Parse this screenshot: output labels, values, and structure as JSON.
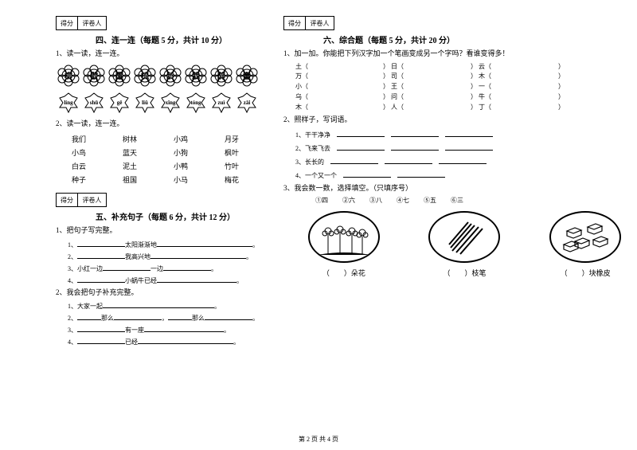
{
  "left": {
    "scoreLabels": [
      "得分",
      "评卷人"
    ],
    "section4": {
      "title": "四、连一连（每题 5 分，共计 10 分）",
      "q1": "1、读一读，连一连。",
      "flowers": [
        "柳",
        "歇",
        "醒",
        "梳",
        "龄",
        "栽",
        "醉",
        "童"
      ],
      "leaves": [
        "líng",
        "shū",
        "gē",
        "liǔ",
        "xǐng",
        "tóng",
        "zuì",
        "zāi"
      ],
      "q2": "2、读一读，连一连。",
      "match": [
        [
          "我们",
          "树林",
          "小鸡",
          "月牙"
        ],
        [
          "小鸟",
          "蓝天",
          "小狗",
          "枫叶"
        ],
        [
          "白云",
          "泥土",
          "小鸭",
          "竹叶"
        ],
        [
          "种子",
          "祖国",
          "小马",
          "梅花"
        ]
      ]
    },
    "section5": {
      "title": "五、补充句子（每题 6 分，共计 12 分）",
      "q1": "1、把句子写完整。",
      "s1": [
        "1、",
        "太阳渐渐地",
        "。"
      ],
      "s2": [
        "2、",
        "我高兴地",
        "。"
      ],
      "s3": [
        "3、小红一边",
        "一边",
        "。"
      ],
      "s4": [
        "4、",
        "小蜗牛已经",
        "。"
      ],
      "q2": "2、我会把句子补充完整。",
      "t1": [
        "1、大家一起",
        "。"
      ],
      "t2": [
        "2、",
        "那么",
        "，",
        "那么",
        "。"
      ],
      "t3": [
        "3、",
        "有一座",
        "。"
      ],
      "t4": [
        "4、",
        "已经",
        "。"
      ]
    }
  },
  "right": {
    "scoreLabels": [
      "得分",
      "评卷人"
    ],
    "section6": {
      "title": "六、综合题（每题 5 分，共计 20 分）",
      "q1": "1、加一加。你能把下列汉字加一个笔画变成另一个字吗？看谁变得多！",
      "hanzi": [
        [
          "土（",
          "）  日（",
          "）  云（",
          "）"
        ],
        [
          "万（",
          "）  司（",
          "）  木（",
          "）"
        ],
        [
          "小（",
          "）  王（",
          "）  一（",
          "）"
        ],
        [
          "乌（",
          "）  问（",
          "）  牛（",
          "）"
        ],
        [
          "木（",
          "）  人（",
          "）  丁（",
          "）"
        ]
      ],
      "q2": "2、照样子，写词语。",
      "ex1": "1、干干净净",
      "ex2": "2、飞来飞去",
      "ex3": "3、长长的",
      "ex4": "4、一个又一个",
      "q3": "3、我会数一数，选择填空。（只填序号）",
      "opts": [
        "①四",
        "②六",
        "③八",
        "④七",
        "⑤五",
        "⑥三"
      ],
      "labels": [
        "（　　）朵花",
        "（　　）枝笔",
        "（　　）块橡皮"
      ]
    }
  },
  "footer": "第 2 页  共 4 页"
}
